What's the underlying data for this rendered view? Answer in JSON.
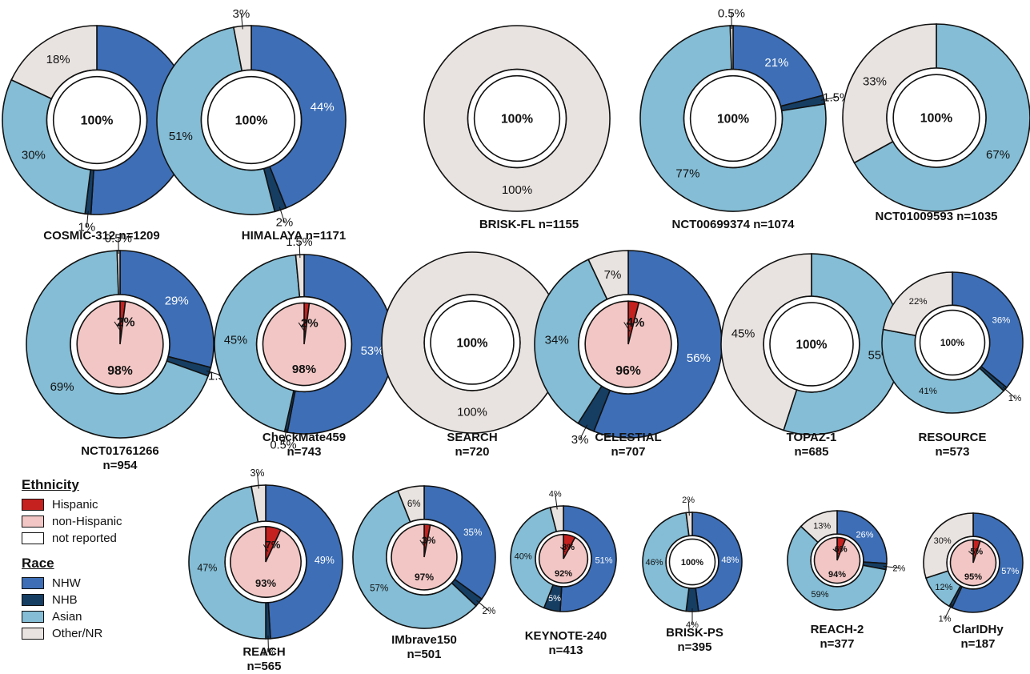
{
  "colors": {
    "Hispanic": "#c4211f",
    "non-Hispanic": "#f2c6c4",
    "not reported": "#ffffff",
    "NHW": "#3d6eb6",
    "NHB": "#163e63",
    "Asian": "#84bdd5",
    "Other/NR": "#e8e3e0"
  },
  "legend": {
    "ethnicity_title": "Ethnicity",
    "ethnicity_items": [
      "Hispanic",
      "non-Hispanic",
      "not reported"
    ],
    "race_title": "Race",
    "race_items": [
      "NHW",
      "NHB",
      "Asian",
      "Other/NR"
    ]
  },
  "chart_data": [
    {
      "type": "pie",
      "name": "COSMIC-312",
      "n": "n=1209",
      "race": [
        {
          "cat": "NHW",
          "value": 51,
          "label": "51%"
        },
        {
          "cat": "NHB",
          "value": 1,
          "label": "1%"
        },
        {
          "cat": "Asian",
          "value": 30,
          "label": "30%"
        },
        {
          "cat": "Other/NR",
          "value": 18,
          "label": "18%"
        }
      ],
      "ethnicity": [
        {
          "cat": "not reported",
          "value": 100,
          "label": "100%"
        }
      ]
    },
    {
      "type": "pie",
      "name": "HIMALAYA",
      "n": "n=1171",
      "race": [
        {
          "cat": "NHW",
          "value": 44,
          "label": "44%"
        },
        {
          "cat": "NHB",
          "value": 2,
          "label": "2%"
        },
        {
          "cat": "Asian",
          "value": 51,
          "label": "51%"
        },
        {
          "cat": "Other/NR",
          "value": 3,
          "label": "3%"
        }
      ],
      "ethnicity": [
        {
          "cat": "not reported",
          "value": 100,
          "label": "100%"
        }
      ]
    },
    {
      "type": "pie",
      "name": "BRISK-FL",
      "n": "n=1155",
      "race": [
        {
          "cat": "Other/NR",
          "value": 100,
          "label": "100%"
        }
      ],
      "ethnicity": [
        {
          "cat": "not reported",
          "value": 100,
          "label": "100%"
        }
      ]
    },
    {
      "type": "pie",
      "name": "NCT00699374",
      "n": "n=1074",
      "race": [
        {
          "cat": "NHW",
          "value": 21,
          "label": "21%"
        },
        {
          "cat": "NHB",
          "value": 1.5,
          "label": "1.5%"
        },
        {
          "cat": "Asian",
          "value": 77,
          "label": "77%"
        },
        {
          "cat": "Other/NR",
          "value": 0.5,
          "label": "0.5%"
        }
      ],
      "ethnicity": [
        {
          "cat": "not reported",
          "value": 100,
          "label": "100%"
        }
      ]
    },
    {
      "type": "pie",
      "name": "NCT01009593",
      "n": "n=1035",
      "race": [
        {
          "cat": "Asian",
          "value": 67,
          "label": "67%"
        },
        {
          "cat": "Other/NR",
          "value": 33,
          "label": "33%"
        }
      ],
      "ethnicity": [
        {
          "cat": "not reported",
          "value": 100,
          "label": "100%"
        }
      ]
    },
    {
      "type": "pie",
      "name": "NCT01761266",
      "n": "n=954",
      "race": [
        {
          "cat": "NHW",
          "value": 29,
          "label": "29%"
        },
        {
          "cat": "NHB",
          "value": 1.5,
          "label": "1.5%"
        },
        {
          "cat": "Asian",
          "value": 69,
          "label": "69%"
        },
        {
          "cat": "Other/NR",
          "value": 0.5,
          "label": "0.5%"
        }
      ],
      "ethnicity": [
        {
          "cat": "Hispanic",
          "value": 2,
          "label": "2%"
        },
        {
          "cat": "non-Hispanic",
          "value": 98,
          "label": "98%"
        }
      ]
    },
    {
      "type": "pie",
      "name": "CheckMate459",
      "n": "n=743",
      "race": [
        {
          "cat": "NHW",
          "value": 53,
          "label": "53%"
        },
        {
          "cat": "NHB",
          "value": 0.5,
          "label": "0.5%"
        },
        {
          "cat": "Asian",
          "value": 45,
          "label": "45%"
        },
        {
          "cat": "Other/NR",
          "value": 1.5,
          "label": "1.5%"
        }
      ],
      "ethnicity": [
        {
          "cat": "Hispanic",
          "value": 2,
          "label": "2%"
        },
        {
          "cat": "non-Hispanic",
          "value": 98,
          "label": "98%"
        }
      ]
    },
    {
      "type": "pie",
      "name": "SEARCH",
      "n": "n=720",
      "race": [
        {
          "cat": "Other/NR",
          "value": 100,
          "label": "100%"
        }
      ],
      "ethnicity": [
        {
          "cat": "not reported",
          "value": 100,
          "label": "100%"
        }
      ]
    },
    {
      "type": "pie",
      "name": "CELESTIAL",
      "n": "n=707",
      "race": [
        {
          "cat": "NHW",
          "value": 56,
          "label": "56%"
        },
        {
          "cat": "NHB",
          "value": 3,
          "label": "3%"
        },
        {
          "cat": "Asian",
          "value": 34,
          "label": "34%"
        },
        {
          "cat": "Other/NR",
          "value": 7,
          "label": "7%"
        }
      ],
      "ethnicity": [
        {
          "cat": "Hispanic",
          "value": 4,
          "label": "4%"
        },
        {
          "cat": "non-Hispanic",
          "value": 96,
          "label": "96%"
        }
      ]
    },
    {
      "type": "pie",
      "name": "TOPAZ-1",
      "n": "n=685",
      "race": [
        {
          "cat": "Asian",
          "value": 55,
          "label": "55%"
        },
        {
          "cat": "Other/NR",
          "value": 45,
          "label": "45%"
        }
      ],
      "ethnicity": [
        {
          "cat": "not reported",
          "value": 100,
          "label": "100%"
        }
      ]
    },
    {
      "type": "pie",
      "name": "RESOURCE",
      "n": "n=573",
      "race": [
        {
          "cat": "NHW",
          "value": 36,
          "label": "36%"
        },
        {
          "cat": "NHB",
          "value": 1,
          "label": "1%"
        },
        {
          "cat": "Asian",
          "value": 41,
          "label": "41%"
        },
        {
          "cat": "Other/NR",
          "value": 22,
          "label": "22%"
        }
      ],
      "ethnicity": [
        {
          "cat": "not reported",
          "value": 100,
          "label": "100%"
        }
      ]
    },
    {
      "type": "pie",
      "name": "REACH",
      "n": "n=565",
      "race": [
        {
          "cat": "NHW",
          "value": 49,
          "label": "49%"
        },
        {
          "cat": "NHB",
          "value": 1,
          "label": "1%"
        },
        {
          "cat": "Asian",
          "value": 47,
          "label": "47%"
        },
        {
          "cat": "Other/NR",
          "value": 3,
          "label": "3%"
        }
      ],
      "ethnicity": [
        {
          "cat": "Hispanic",
          "value": 7,
          "label": "7%"
        },
        {
          "cat": "non-Hispanic",
          "value": 93,
          "label": "93%"
        }
      ]
    },
    {
      "type": "pie",
      "name": "IMbrave150",
      "n": "n=501",
      "race": [
        {
          "cat": "NHW",
          "value": 35,
          "label": "35%"
        },
        {
          "cat": "NHB",
          "value": 2,
          "label": "2%"
        },
        {
          "cat": "Asian",
          "value": 57,
          "label": "57%"
        },
        {
          "cat": "Other/NR",
          "value": 6,
          "label": "6%"
        }
      ],
      "ethnicity": [
        {
          "cat": "Hispanic",
          "value": 3,
          "label": "3%"
        },
        {
          "cat": "non-Hispanic",
          "value": 97,
          "label": "97%"
        }
      ]
    },
    {
      "type": "pie",
      "name": "KEYNOTE-240",
      "n": "n=413",
      "race": [
        {
          "cat": "NHW",
          "value": 51,
          "label": "51%"
        },
        {
          "cat": "NHB",
          "value": 5,
          "label": "5%"
        },
        {
          "cat": "Asian",
          "value": 40,
          "label": "40%"
        },
        {
          "cat": "Other/NR",
          "value": 4,
          "label": "4%"
        }
      ],
      "ethnicity": [
        {
          "cat": "Hispanic",
          "value": 8,
          "label": "8%"
        },
        {
          "cat": "non-Hispanic",
          "value": 92,
          "label": "92%"
        }
      ]
    },
    {
      "type": "pie",
      "name": "BRISK-PS",
      "n": "n=395",
      "race": [
        {
          "cat": "NHW",
          "value": 48,
          "label": "48%"
        },
        {
          "cat": "NHB",
          "value": 4,
          "label": "4%"
        },
        {
          "cat": "Asian",
          "value": 46,
          "label": "46%"
        },
        {
          "cat": "Other/NR",
          "value": 2,
          "label": "2%"
        }
      ],
      "ethnicity": [
        {
          "cat": "not reported",
          "value": 100,
          "label": "100%"
        }
      ]
    },
    {
      "type": "pie",
      "name": "REACH-2",
      "n": "n=377",
      "race": [
        {
          "cat": "NHW",
          "value": 26,
          "label": "26%"
        },
        {
          "cat": "NHB",
          "value": 2,
          "label": "2%"
        },
        {
          "cat": "Asian",
          "value": 59,
          "label": "59%"
        },
        {
          "cat": "Other/NR",
          "value": 13,
          "label": "13%"
        }
      ],
      "ethnicity": [
        {
          "cat": "Hispanic",
          "value": 6,
          "label": "6%"
        },
        {
          "cat": "non-Hispanic",
          "value": 94,
          "label": "94%"
        }
      ]
    },
    {
      "type": "pie",
      "name": "ClarIDHy",
      "n": "n=187",
      "race": [
        {
          "cat": "NHW",
          "value": 57,
          "label": "57%"
        },
        {
          "cat": "NHB",
          "value": 1,
          "label": "1%"
        },
        {
          "cat": "Asian",
          "value": 12,
          "label": "12%"
        },
        {
          "cat": "Other/NR",
          "value": 30,
          "label": "30%"
        }
      ],
      "ethnicity": [
        {
          "cat": "Hispanic",
          "value": 5,
          "label": "5%"
        },
        {
          "cat": "non-Hispanic",
          "value": 95,
          "label": "95%"
        }
      ]
    }
  ]
}
